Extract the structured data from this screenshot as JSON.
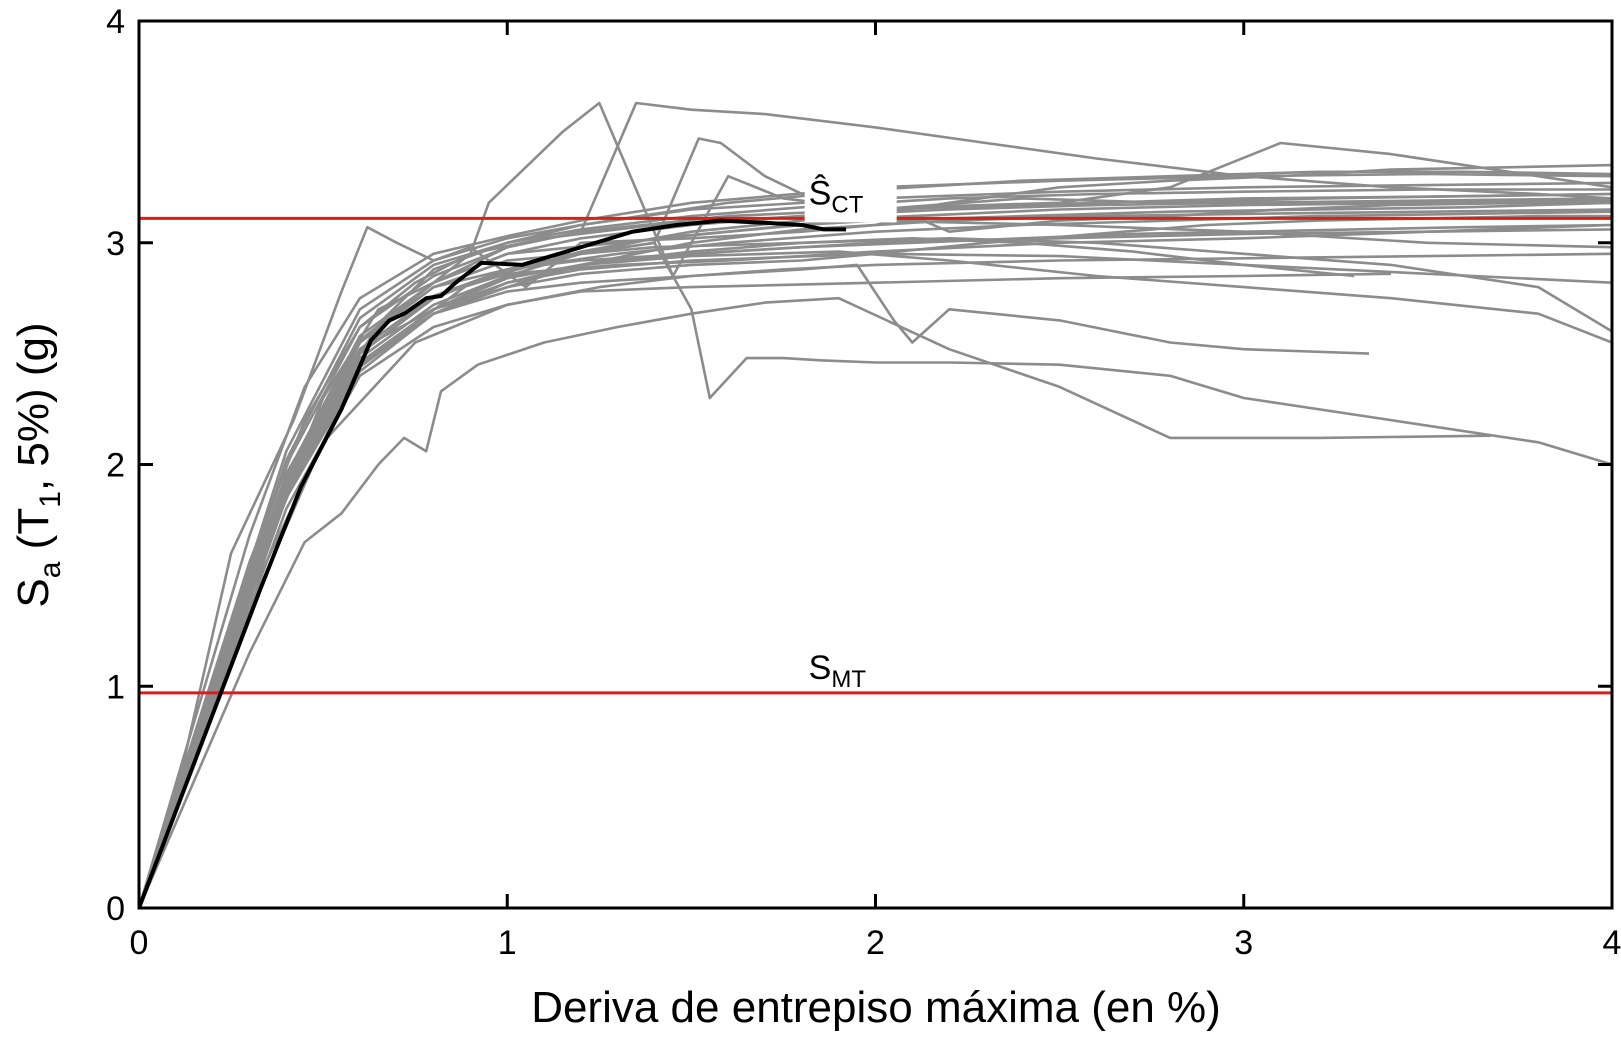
{
  "chart_data": {
    "type": "line",
    "xlabel": "Deriva de entrepiso máxima (en %)",
    "ylabel": {
      "main": "S",
      "sub1": "a",
      "mid": " (T",
      "sub2": "1",
      "rest": ", 5%) (g)"
    },
    "xlim": [
      0,
      4
    ],
    "ylim": [
      0,
      4
    ],
    "xticks": [
      0,
      1,
      2,
      3,
      4
    ],
    "yticks": [
      0,
      1,
      2,
      3,
      4
    ],
    "xtick_labels": [
      "0",
      "1",
      "2",
      "3",
      "4"
    ],
    "ytick_labels": [
      "0",
      "1",
      "2",
      "3",
      "4"
    ],
    "grid": false,
    "colors": {
      "records": "#8c8c8c",
      "median": "#000000",
      "reference": "#d42020"
    },
    "reference_lines": [
      {
        "y": 3.11,
        "label_main": "Ŝ",
        "label_sub": "CT",
        "label_x": 1.9
      },
      {
        "y": 0.97,
        "label_main": "S",
        "label_sub": "MT",
        "label_x": 1.9
      }
    ],
    "median": {
      "x": [
        0,
        0.11,
        0.22,
        0.33,
        0.44,
        0.55,
        0.63,
        0.68,
        0.72,
        0.78,
        0.82,
        0.86,
        0.93,
        1.04,
        1.12,
        1.22,
        1.34,
        1.46,
        1.58,
        1.7,
        1.8,
        1.86,
        1.92
      ],
      "y": [
        0,
        0.48,
        0.96,
        1.44,
        1.9,
        2.25,
        2.56,
        2.65,
        2.68,
        2.75,
        2.76,
        2.82,
        2.91,
        2.9,
        2.94,
        2.99,
        3.05,
        3.08,
        3.1,
        3.09,
        3.08,
        3.06,
        3.06
      ]
    },
    "series": [
      {
        "x": [
          0,
          0.2,
          0.4,
          0.6,
          0.8,
          1.0,
          1.2,
          1.4,
          1.6,
          1.8,
          2.0,
          2.4,
          2.8,
          3.2,
          3.6,
          4.0
        ],
        "y": [
          0,
          0.97,
          1.94,
          2.55,
          2.8,
          2.88,
          2.95,
          3.02,
          3.05,
          3.08,
          3.1,
          3.12,
          3.14,
          3.15,
          3.16,
          3.18
        ]
      },
      {
        "x": [
          0,
          0.2,
          0.4,
          0.6,
          0.8,
          1.0,
          1.2,
          1.5,
          2.0,
          2.5,
          3.0,
          3.5,
          4.0
        ],
        "y": [
          0,
          0.93,
          1.86,
          2.45,
          2.7,
          2.82,
          2.88,
          2.92,
          2.95,
          2.94,
          2.9,
          2.86,
          2.82
        ]
      },
      {
        "x": [
          0,
          0.2,
          0.4,
          0.6,
          0.8,
          1.0,
          1.2,
          1.5,
          2.0,
          2.5,
          3.0,
          3.5,
          4.0
        ],
        "y": [
          0,
          1.03,
          2.06,
          2.7,
          2.92,
          3.02,
          3.08,
          3.15,
          3.2,
          3.23,
          3.25,
          3.26,
          3.27
        ]
      },
      {
        "x": [
          0,
          0.15,
          0.3,
          0.45,
          0.6,
          0.8,
          1.0,
          1.2,
          1.5,
          2.0,
          2.5,
          3.0,
          3.5,
          4.0
        ],
        "y": [
          0,
          0.84,
          1.68,
          2.35,
          2.75,
          2.95,
          3.03,
          3.1,
          3.18,
          3.25,
          3.28,
          3.3,
          3.31,
          3.3
        ]
      },
      {
        "x": [
          0,
          0.2,
          0.4,
          0.6,
          0.8,
          1.0,
          1.2,
          1.5,
          2.0,
          2.5,
          3.0,
          3.4
        ],
        "y": [
          0,
          0.9,
          1.8,
          2.4,
          2.62,
          2.72,
          2.78,
          2.8,
          2.82,
          2.84,
          2.85,
          2.86
        ]
      },
      {
        "x": [
          0,
          0.2,
          0.4,
          0.6,
          0.8,
          1.0,
          1.2,
          1.6,
          2.0,
          2.6,
          3.0,
          3.6,
          4.0
        ],
        "y": [
          0,
          1.0,
          2.0,
          2.62,
          2.85,
          2.98,
          3.05,
          3.12,
          3.15,
          3.18,
          3.2,
          3.21,
          3.22
        ]
      },
      {
        "x": [
          0,
          0.2,
          0.4,
          0.6,
          0.8,
          1.0,
          1.3,
          1.6,
          2.0,
          2.4,
          2.8,
          3.2,
          3.6,
          4.0
        ],
        "y": [
          0,
          0.95,
          1.9,
          2.5,
          2.75,
          2.88,
          2.95,
          3.0,
          3.05,
          3.08,
          3.1,
          3.12,
          3.13,
          3.14
        ]
      },
      {
        "x": [
          0,
          0.25,
          0.5,
          0.75,
          1.0,
          1.25,
          1.5,
          1.75,
          2.0,
          2.5,
          3.0,
          3.5,
          4.0
        ],
        "y": [
          0,
          1.15,
          2.1,
          2.55,
          2.72,
          2.8,
          2.85,
          2.88,
          2.9,
          2.92,
          2.93,
          2.94,
          2.95
        ]
      },
      {
        "x": [
          0,
          0.17,
          0.34,
          0.5,
          0.66,
          0.8,
          1.0,
          1.2,
          1.5,
          1.8,
          2.2,
          2.6,
          3.0,
          3.5,
          4.0
        ],
        "y": [
          0,
          0.8,
          1.6,
          2.25,
          2.65,
          2.88,
          3.0,
          3.06,
          3.12,
          3.16,
          3.2,
          3.22,
          3.23,
          3.24,
          3.24
        ]
      },
      {
        "x": [
          0,
          0.2,
          0.4,
          0.6,
          0.8,
          1.0,
          1.2,
          1.5,
          1.8,
          2.2,
          2.6,
          3.0,
          3.5,
          4.0
        ],
        "y": [
          0,
          0.98,
          1.96,
          2.52,
          2.7,
          2.8,
          2.9,
          3.0,
          3.06,
          3.1,
          3.12,
          3.13,
          3.14,
          3.15
        ]
      },
      {
        "x": [
          0,
          0.3,
          0.6,
          0.9,
          1.2,
          1.5,
          1.8,
          2.1,
          2.5,
          3.0,
          3.5,
          4.0
        ],
        "y": [
          0,
          1.4,
          2.45,
          2.82,
          2.96,
          3.05,
          3.1,
          3.12,
          3.15,
          3.17,
          3.18,
          3.19
        ]
      },
      {
        "x": [
          0,
          0.15,
          0.3,
          0.45,
          0.6,
          0.75,
          0.9,
          1.1,
          1.4,
          1.8,
          2.2,
          2.6,
          3.0,
          3.5,
          4.0
        ],
        "y": [
          0,
          0.78,
          1.56,
          2.2,
          2.62,
          2.82,
          2.95,
          3.02,
          3.08,
          3.12,
          3.15,
          3.17,
          3.18,
          3.19,
          3.2
        ]
      },
      {
        "x": [
          0,
          0.2,
          0.4,
          0.6,
          0.8,
          1.0,
          1.2,
          1.5,
          1.8,
          2.1,
          2.4,
          2.7,
          3.0,
          3.3
        ],
        "y": [
          0,
          0.92,
          1.85,
          2.42,
          2.68,
          2.82,
          2.9,
          2.96,
          3.0,
          3.02,
          3.0,
          2.96,
          2.9,
          2.85
        ]
      },
      {
        "x": [
          0,
          0.12,
          0.25,
          0.42,
          0.55,
          0.62,
          0.7,
          0.8,
          0.9,
          1.05,
          1.2,
          1.5,
          1.8,
          2.0,
          2.1,
          2.2,
          2.5,
          2.8,
          3.1,
          3.4,
          3.8,
          4.0
        ],
        "y": [
          0,
          0.65,
          1.6,
          2.2,
          2.78,
          3.07,
          3.0,
          2.92,
          2.98,
          2.8,
          3.0,
          3.02,
          3.05,
          3.08,
          3.12,
          3.05,
          3.1,
          3.12,
          3.15,
          3.17,
          3.18,
          3.18
        ]
      },
      {
        "x": [
          0,
          0.2,
          0.38,
          0.5,
          0.65,
          0.8,
          0.9,
          0.95,
          1.15,
          1.25,
          1.45,
          1.6,
          1.75,
          2.0,
          2.4,
          2.8,
          3.2,
          3.6,
          4.0
        ],
        "y": [
          0,
          0.95,
          1.8,
          2.3,
          2.7,
          2.82,
          2.95,
          3.18,
          3.5,
          3.63,
          2.85,
          3.3,
          3.2,
          3.15,
          3.2,
          3.18,
          3.2,
          3.21,
          3.22
        ]
      },
      {
        "x": [
          0,
          0.2,
          0.4,
          0.6,
          0.8,
          1.0,
          1.2,
          1.35,
          1.5,
          1.7,
          2.0,
          2.3,
          2.6,
          3.0,
          3.4,
          3.8,
          4.0
        ],
        "y": [
          0,
          0.95,
          1.9,
          2.55,
          2.82,
          2.98,
          3.05,
          3.63,
          3.6,
          3.58,
          3.52,
          3.45,
          3.38,
          3.3,
          3.25,
          3.22,
          3.2
        ]
      },
      {
        "x": [
          0,
          0.2,
          0.4,
          0.6,
          0.8,
          1.0,
          1.2,
          1.4,
          1.52,
          1.58,
          1.7,
          1.85,
          2.0,
          2.5,
          3.0,
          3.5,
          4.0
        ],
        "y": [
          0,
          0.92,
          1.85,
          2.45,
          2.7,
          2.85,
          2.95,
          3.0,
          3.47,
          3.45,
          3.3,
          3.18,
          3.1,
          3.08,
          3.05,
          3.0,
          2.98
        ]
      },
      {
        "x": [
          0,
          0.2,
          0.4,
          0.6,
          0.8,
          1.0,
          1.2,
          1.4,
          1.5,
          1.55,
          1.65,
          1.75,
          1.85,
          2.0,
          2.2,
          2.5,
          2.8,
          3.0,
          3.4,
          3.8,
          4.0
        ],
        "y": [
          0,
          0.95,
          1.9,
          2.5,
          2.75,
          2.88,
          2.95,
          3.0,
          2.7,
          2.3,
          2.48,
          2.48,
          2.47,
          2.46,
          2.46,
          2.45,
          2.4,
          2.3,
          2.2,
          2.1,
          2.0
        ]
      },
      {
        "x": [
          0,
          0.3,
          0.45,
          0.55,
          0.65,
          0.72,
          0.78,
          0.82,
          0.92,
          1.1,
          1.3,
          1.5,
          1.7,
          1.9,
          2.2,
          2.5,
          2.8,
          3.2,
          3.67
        ],
        "y": [
          0,
          1.15,
          1.65,
          1.78,
          2.0,
          2.12,
          2.06,
          2.33,
          2.45,
          2.55,
          2.62,
          2.68,
          2.73,
          2.75,
          2.52,
          2.35,
          2.12,
          2.12,
          2.13
        ]
      },
      {
        "x": [
          0,
          0.2,
          0.4,
          0.6,
          0.8,
          1.0,
          1.2,
          1.5,
          1.8,
          1.95,
          2.05,
          2.1,
          2.2,
          2.5,
          2.8,
          3.0,
          3.34
        ],
        "y": [
          0,
          0.95,
          1.9,
          2.45,
          2.68,
          2.78,
          2.82,
          2.85,
          2.88,
          2.9,
          2.65,
          2.55,
          2.7,
          2.65,
          2.55,
          2.52,
          2.5
        ]
      },
      {
        "x": [
          0,
          0.2,
          0.4,
          0.6,
          0.8,
          1.0,
          1.3,
          1.6,
          1.9,
          2.2,
          2.5,
          2.8,
          3.1,
          3.4,
          3.7,
          4.0
        ],
        "y": [
          0,
          0.98,
          1.95,
          2.58,
          2.82,
          2.95,
          3.0,
          3.05,
          3.1,
          3.18,
          3.25,
          3.28,
          3.3,
          3.33,
          3.34,
          3.35
        ]
      },
      {
        "x": [
          0,
          0.2,
          0.4,
          0.6,
          0.8,
          1.0,
          1.3,
          1.6,
          2.0,
          2.5,
          3.0,
          3.5,
          4.0
        ],
        "y": [
          0,
          0.94,
          1.88,
          2.48,
          2.72,
          2.85,
          2.92,
          2.96,
          3.0,
          3.02,
          3.04,
          3.05,
          3.06
        ]
      },
      {
        "x": [
          0,
          0.2,
          0.4,
          0.6,
          0.8,
          1.0,
          1.2,
          1.5,
          1.8,
          2.1,
          2.4,
          2.7,
          3.0,
          3.3,
          3.6,
          4.0
        ],
        "y": [
          0,
          0.96,
          1.92,
          2.52,
          2.76,
          2.88,
          2.92,
          2.95,
          2.98,
          3.0,
          3.02,
          3.04,
          3.05,
          3.06,
          3.07,
          3.08
        ]
      },
      {
        "x": [
          0,
          0.2,
          0.4,
          0.6,
          0.8,
          1.0,
          1.2,
          1.5,
          1.8,
          2.0,
          2.3,
          2.6,
          2.9,
          3.2,
          3.5,
          3.8,
          4.0
        ],
        "y": [
          0,
          0.93,
          1.86,
          2.44,
          2.68,
          2.8,
          2.86,
          2.9,
          2.92,
          2.95,
          3.0,
          3.04,
          3.08,
          3.1,
          3.11,
          3.12,
          3.12
        ]
      },
      {
        "x": [
          0,
          0.2,
          0.4,
          0.6,
          0.8,
          1.0,
          1.4,
          1.8,
          2.2,
          2.6,
          3.0,
          3.4,
          3.8,
          4.0
        ],
        "y": [
          0,
          0.97,
          1.94,
          2.55,
          2.8,
          2.92,
          2.98,
          3.0,
          3.02,
          3.0,
          2.95,
          2.9,
          2.8,
          2.6
        ]
      },
      {
        "x": [
          0,
          0.2,
          0.4,
          0.6,
          0.8,
          1.0,
          1.3,
          1.6,
          2.0,
          2.5,
          3.0,
          3.5,
          4.0
        ],
        "y": [
          0,
          0.95,
          1.9,
          2.52,
          2.76,
          2.86,
          2.9,
          2.92,
          2.96,
          3.0,
          3.02,
          3.05,
          3.08
        ]
      },
      {
        "x": [
          0,
          0.2,
          0.4,
          0.6,
          0.8,
          1.0,
          1.2,
          1.6,
          2.0,
          2.4,
          2.8,
          3.2,
          3.6,
          4.0
        ],
        "y": [
          0,
          1.01,
          2.02,
          2.66,
          2.9,
          3.0,
          3.08,
          3.18,
          3.24,
          3.28,
          3.3,
          3.32,
          3.32,
          3.31
        ]
      },
      {
        "x": [
          0,
          0.2,
          0.4,
          0.6,
          0.8,
          1.0,
          1.2,
          1.5,
          1.9,
          2.2,
          2.6,
          3.0,
          3.4,
          3.8,
          4.0
        ],
        "y": [
          0,
          0.94,
          1.88,
          2.46,
          2.7,
          2.84,
          2.9,
          2.94,
          2.96,
          2.92,
          2.85,
          2.8,
          2.75,
          2.68,
          2.55
        ]
      },
      {
        "x": [
          0,
          0.2,
          0.4,
          0.6,
          0.8,
          1.0,
          1.2,
          1.5,
          1.8,
          2.1,
          2.5,
          2.8,
          3.1,
          3.4,
          3.8,
          4.0
        ],
        "y": [
          0,
          0.96,
          1.92,
          2.56,
          2.82,
          2.95,
          3.02,
          3.08,
          3.12,
          3.16,
          3.18,
          3.25,
          3.45,
          3.4,
          3.3,
          3.25
        ]
      }
    ]
  }
}
